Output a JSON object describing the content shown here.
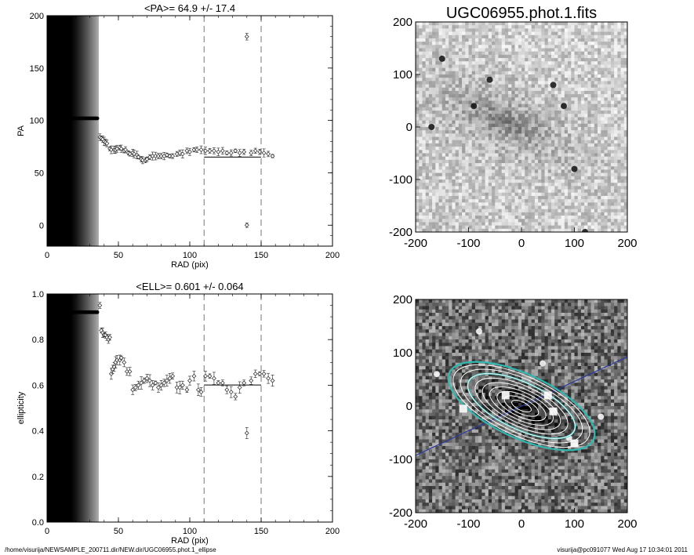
{
  "chart_data": [
    {
      "type": "scatter",
      "title": "<PA>=  64.9 +/-  17.4",
      "xlabel": "RAD (pix)",
      "ylabel": "PA",
      "xlim": [
        0,
        200
      ],
      "ylim": [
        -20,
        200
      ],
      "xticks": [
        "0",
        "50",
        "100",
        "150",
        "200"
      ],
      "yticks": [
        "0",
        "50",
        "100",
        "150",
        "200"
      ],
      "shaded_rad_max": 36,
      "vlines": [
        110,
        150
      ],
      "mean_segment": {
        "x": [
          110,
          150
        ],
        "y": 65
      },
      "series": [
        {
          "points": [
            [
              37,
              84
            ],
            [
              38,
              83
            ],
            [
              39,
              82
            ],
            [
              40,
              80
            ],
            [
              41,
              79
            ],
            [
              42,
              78
            ],
            [
              44,
              73
            ],
            [
              45,
              72
            ],
            [
              47,
              72
            ],
            [
              48,
              72
            ],
            [
              49,
              73
            ],
            [
              51,
              74
            ],
            [
              52,
              73
            ],
            [
              54,
              71
            ],
            [
              55,
              72
            ],
            [
              57,
              69
            ],
            [
              58,
              68
            ],
            [
              60,
              69
            ],
            [
              61,
              68
            ],
            [
              63,
              67
            ],
            [
              64,
              65
            ],
            [
              66,
              63
            ],
            [
              67,
              62
            ],
            [
              69,
              62
            ],
            [
              70,
              63
            ],
            [
              72,
              65
            ],
            [
              74,
              66
            ],
            [
              76,
              66
            ],
            [
              78,
              66
            ],
            [
              80,
              66
            ],
            [
              82,
              66
            ],
            [
              84,
              67
            ],
            [
              86,
              66
            ],
            [
              88,
              66
            ],
            [
              91,
              68
            ],
            [
              93,
              69
            ],
            [
              95,
              68
            ],
            [
              98,
              71
            ],
            [
              100,
              70
            ],
            [
              103,
              72
            ],
            [
              105,
              72
            ],
            [
              108,
              72
            ],
            [
              111,
              71
            ],
            [
              114,
              71
            ],
            [
              117,
              71
            ],
            [
              120,
              70
            ],
            [
              123,
              71
            ],
            [
              126,
              69
            ],
            [
              129,
              69
            ],
            [
              132,
              71
            ],
            [
              135,
              69
            ],
            [
              138,
              70
            ],
            [
              140,
              180
            ],
            [
              140,
              0
            ],
            [
              143,
              69
            ],
            [
              146,
              71
            ],
            [
              149,
              70
            ],
            [
              152,
              69
            ],
            [
              155,
              68
            ],
            [
              158,
              66
            ]
          ]
        }
      ]
    },
    {
      "type": "scatter",
      "title": "<ELL>= 0.601 +/-  0.064",
      "xlabel": "RAD (pix)",
      "ylabel": "ellipticity",
      "xlim": [
        0,
        200
      ],
      "ylim": [
        0,
        1
      ],
      "xticks": [
        "0",
        "50",
        "100",
        "150",
        "200"
      ],
      "yticks": [
        "0.0",
        "0.2",
        "0.4",
        "0.6",
        "0.8",
        "1.0"
      ],
      "shaded_rad_max": 36,
      "vlines": [
        110,
        150
      ],
      "mean_segment": {
        "x": [
          110,
          150
        ],
        "y": 0.601
      },
      "series": [
        {
          "points": [
            [
              37,
              0.95
            ],
            [
              38,
              0.84
            ],
            [
              39,
              0.83
            ],
            [
              40,
              0.82
            ],
            [
              41,
              0.82
            ],
            [
              42,
              0.81
            ],
            [
              43,
              0.8
            ],
            [
              44,
              0.81
            ],
            [
              45,
              0.65
            ],
            [
              46,
              0.67
            ],
            [
              47,
              0.68
            ],
            [
              48,
              0.7
            ],
            [
              49,
              0.71
            ],
            [
              51,
              0.71
            ],
            [
              52,
              0.72
            ],
            [
              54,
              0.7
            ],
            [
              56,
              0.66
            ],
            [
              58,
              0.66
            ],
            [
              60,
              0.58
            ],
            [
              62,
              0.59
            ],
            [
              64,
              0.6
            ],
            [
              66,
              0.61
            ],
            [
              68,
              0.62
            ],
            [
              70,
              0.63
            ],
            [
              72,
              0.62
            ],
            [
              74,
              0.6
            ],
            [
              76,
              0.61
            ],
            [
              78,
              0.59
            ],
            [
              80,
              0.6
            ],
            [
              82,
              0.61
            ],
            [
              84,
              0.62
            ],
            [
              86,
              0.63
            ],
            [
              88,
              0.64
            ],
            [
              91,
              0.59
            ],
            [
              93,
              0.59
            ],
            [
              95,
              0.6
            ],
            [
              98,
              0.58
            ],
            [
              100,
              0.62
            ],
            [
              103,
              0.64
            ],
            [
              106,
              0.58
            ],
            [
              108,
              0.57
            ],
            [
              111,
              0.64
            ],
            [
              114,
              0.64
            ],
            [
              117,
              0.63
            ],
            [
              120,
              0.61
            ],
            [
              123,
              0.61
            ],
            [
              126,
              0.58
            ],
            [
              129,
              0.57
            ],
            [
              132,
              0.55
            ],
            [
              135,
              0.59
            ],
            [
              138,
              0.61
            ],
            [
              140,
              0.39
            ],
            [
              143,
              0.62
            ],
            [
              146,
              0.65
            ],
            [
              149,
              0.65
            ],
            [
              152,
              0.65
            ],
            [
              155,
              0.63
            ],
            [
              158,
              0.62
            ]
          ]
        }
      ]
    },
    {
      "type": "heatmap",
      "title": "UGC06955.phot.1.fits",
      "xlim": [
        -200,
        200
      ],
      "ylim": [
        -200,
        200
      ],
      "xticks": [
        "-200",
        "-100",
        "0",
        "100",
        "200"
      ],
      "yticks": [
        "-200",
        "-100",
        "0",
        "100",
        "200"
      ],
      "galaxy": {
        "center": [
          -30,
          10
        ],
        "pa_deg": 65,
        "ell": 0.6
      }
    },
    {
      "type": "heatmap",
      "title": "",
      "xlim": [
        -200,
        200
      ],
      "ylim": [
        -200,
        200
      ],
      "xticks": [
        "-200",
        "-100",
        "0",
        "100",
        "200"
      ],
      "yticks": [
        "-200",
        "-100",
        "0",
        "100",
        "200"
      ],
      "fit_overlay": {
        "center": [
          0,
          0
        ],
        "pa_deg": 65,
        "ell": 0.6,
        "isophote_semimajor": [
          20,
          35,
          50,
          65,
          80,
          95,
          110,
          125,
          140
        ],
        "outer_semimajor": [
          110,
          150
        ]
      }
    }
  ],
  "footer": {
    "path": "/home/visurija/NEWSAMPLE_200711.dir/NEW.dir/UGC06955.phot.1_ellipse",
    "stamp": "visurija@pc091077  Wed Aug 17 10:34:01 2011"
  },
  "colors": {
    "ellipse_cyan": "#2fb8b0",
    "axis_line_blue": "#2a3aa0"
  }
}
